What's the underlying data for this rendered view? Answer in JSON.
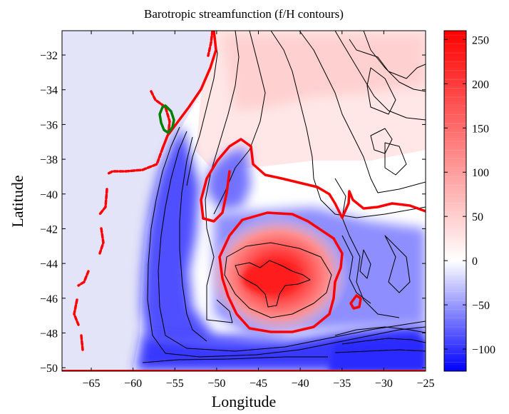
{
  "chart_data": {
    "type": "heatmap",
    "title": "Barotropic streamfunction (f/H contours)",
    "xlabel": "Longitude",
    "ylabel": "Latitude",
    "xlim": [
      -68.5,
      -25
    ],
    "ylim": [
      -50.2,
      -30.6
    ],
    "xticks": [
      -65,
      -60,
      -55,
      -50,
      -45,
      -40,
      -35,
      -30,
      -25
    ],
    "yticks": [
      -32,
      -34,
      -36,
      -38,
      -40,
      -42,
      -44,
      -46,
      -48,
      -50
    ],
    "colorbar": {
      "range": [
        -125,
        260
      ],
      "ticks": [
        250,
        200,
        150,
        100,
        50,
        0,
        -50,
        -100
      ],
      "colormap": [
        "#0000ff",
        "#ffffff",
        "#ff0000"
      ]
    },
    "field_features": [
      {
        "feature": "anticyclonic high",
        "center_lon": -43.5,
        "center_lat": -44.9,
        "peak": 260,
        "radius_lon": 6,
        "radius_lat": 2.6
      },
      {
        "feature": "eastern shelf band low",
        "center_lon": -51.5,
        "center_lat": -45.5,
        "peak": -120
      },
      {
        "feature": "southern band low",
        "center_lon": -40,
        "center_lat": -49,
        "peak": -115
      },
      {
        "feature": "northern weak positive",
        "center_lon": -38,
        "center_lat": -34,
        "peak": 30
      }
    ],
    "zero_contour_color": "#ff0000",
    "highlight_contour_color": "#008000",
    "black_contours": "f/H"
  }
}
